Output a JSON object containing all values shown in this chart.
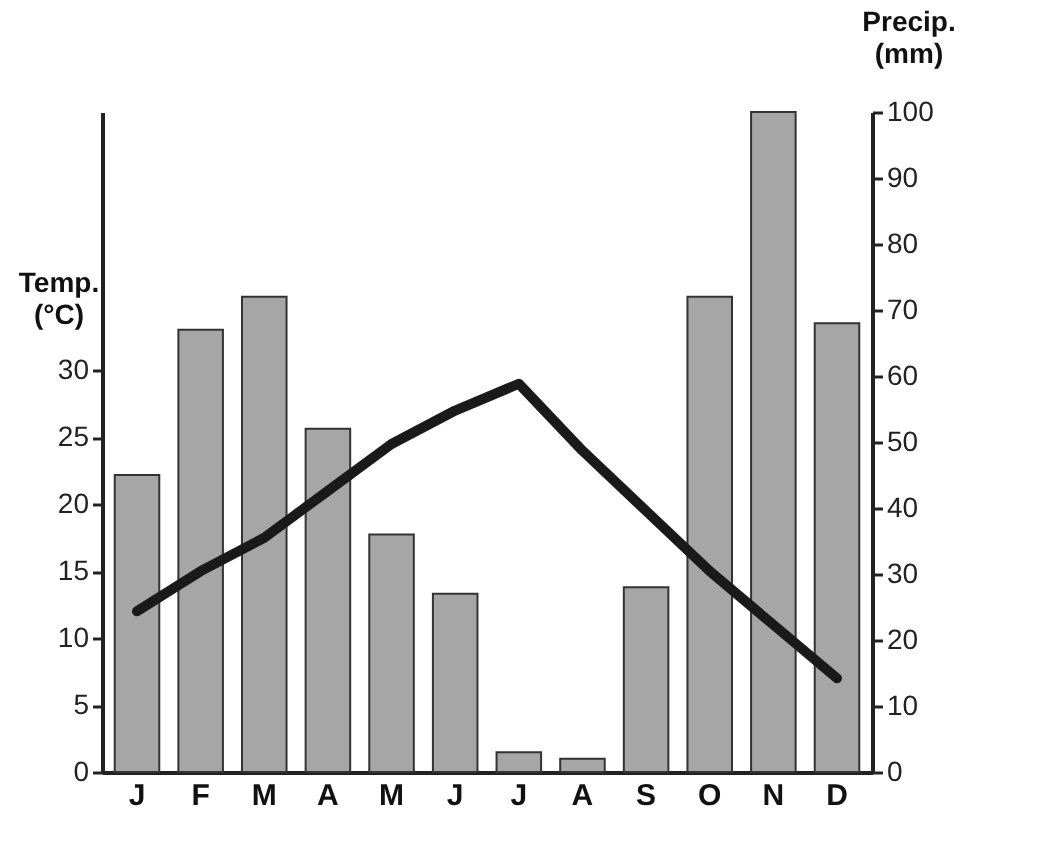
{
  "chart_data": {
    "type": "bar",
    "categories": [
      "J",
      "F",
      "M",
      "A",
      "M",
      "J",
      "J",
      "A",
      "S",
      "O",
      "N",
      "D"
    ],
    "ylabel": "Temp. (°C)",
    "y2label": "Precip. (mm)",
    "ylim": [
      0,
      49.3
    ],
    "yticks": [
      0,
      5,
      10,
      15,
      20,
      25,
      30
    ],
    "y2lim": [
      0,
      100
    ],
    "y2ticks": [
      0,
      10,
      20,
      30,
      40,
      50,
      60,
      70,
      80,
      90,
      100
    ],
    "series": [
      {
        "axis": "y2",
        "color": "#a6a6a6",
        "values": [
          45,
          67,
          72,
          52,
          36,
          27,
          3,
          2,
          28,
          72,
          100,
          68
        ]
      },
      {
        "type": "line",
        "color": "#1a1a1a",
        "values": [
          12,
          15,
          17.5,
          21,
          24.5,
          27,
          29,
          24,
          19.5,
          15,
          11,
          7
        ]
      }
    ]
  }
}
